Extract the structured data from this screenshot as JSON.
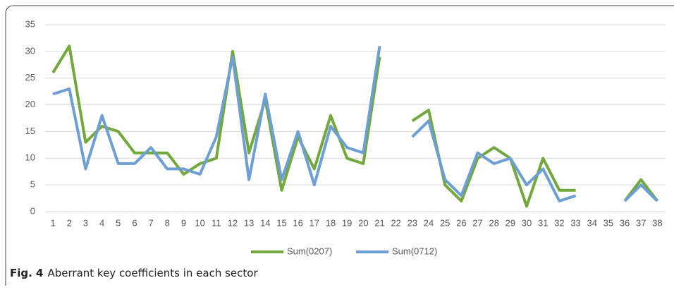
{
  "chart_data": {
    "type": "line",
    "categories": [
      "1",
      "2",
      "3",
      "4",
      "5",
      "6",
      "7",
      "8",
      "9",
      "10",
      "11",
      "12",
      "13",
      "14",
      "15",
      "16",
      "17",
      "18",
      "19",
      "20",
      "21",
      "22",
      "23",
      "24",
      "25",
      "26",
      "27",
      "28",
      "29",
      "30",
      "31",
      "32",
      "33",
      "34",
      "35",
      "36",
      "37",
      "38"
    ],
    "series": [
      {
        "name": "Sum(0207)",
        "color": "#72a83c",
        "values": [
          26,
          31,
          13,
          16,
          15,
          11,
          11,
          11,
          7,
          9,
          10,
          30,
          11,
          21,
          4,
          14,
          8,
          18,
          10,
          9,
          29,
          null,
          17,
          19,
          5,
          2,
          10,
          12,
          10,
          1,
          10,
          4,
          4,
          null,
          null,
          2,
          6,
          2
        ]
      },
      {
        "name": "Sum(0712)",
        "color": "#6d9fd4",
        "values": [
          22,
          23,
          8,
          18,
          9,
          9,
          12,
          8,
          8,
          7,
          14,
          29,
          6,
          22,
          6,
          15,
          5,
          16,
          12,
          11,
          31,
          null,
          14,
          17,
          6,
          3,
          11,
          9,
          10,
          5,
          8,
          2,
          3,
          null,
          null,
          2,
          5,
          2
        ]
      }
    ],
    "ylim": [
      0,
      35
    ],
    "yticks": [
      0,
      5,
      10,
      15,
      20,
      25,
      30,
      35
    ],
    "grid": true,
    "legend": "bottom"
  },
  "caption": {
    "label": "Fig. 4",
    "text": "Aberrant key coefficients in each sector"
  }
}
